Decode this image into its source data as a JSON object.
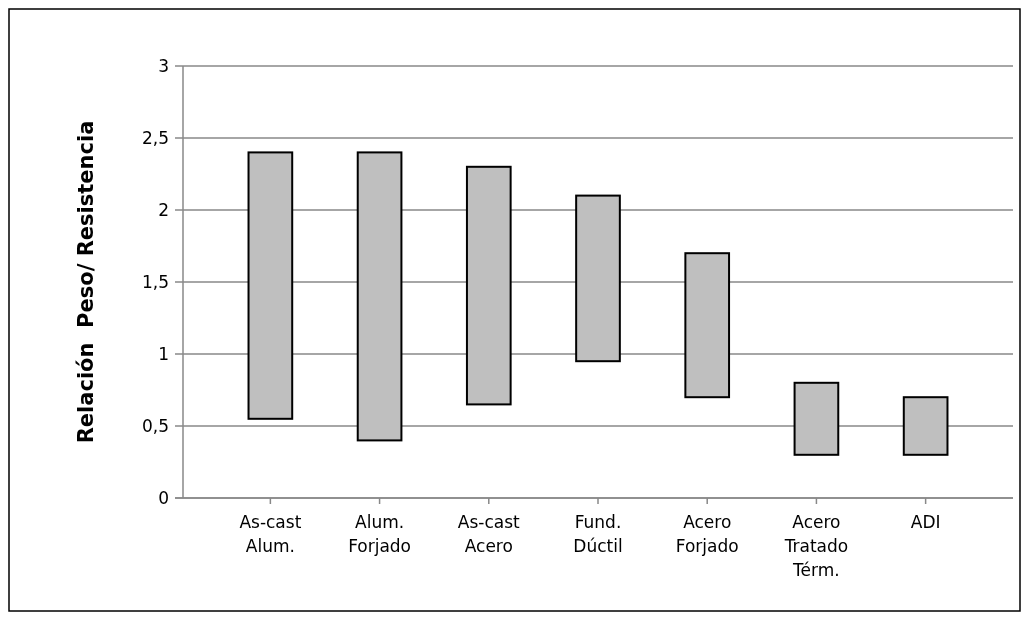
{
  "chart_data": {
    "type": "bar",
    "ylabel": "Relación  Peso/ Resistencia",
    "categories": [
      "As-cast Alum.",
      "Alum. Forjado",
      "As-cast Acero",
      "Fund. Dúctil",
      "Acero Forjado",
      "Acero Tratado Térm.",
      "ADI"
    ],
    "base": [
      0.55,
      0.4,
      0.65,
      0.95,
      0.7,
      0.3,
      0.3
    ],
    "values": [
      1.85,
      2.0,
      1.65,
      1.15,
      1.0,
      0.5,
      0.4
    ],
    "color": "#bfbfbf",
    "ylim": [
      0,
      3
    ],
    "yticks": [
      0,
      {
        "value": 0.5,
        "label": "0,5"
      },
      1,
      {
        "value": 1.5,
        "label": "1,5"
      },
      2,
      {
        "value": 2.5,
        "label": "2,5"
      },
      3
    ],
    "grid": "y"
  }
}
